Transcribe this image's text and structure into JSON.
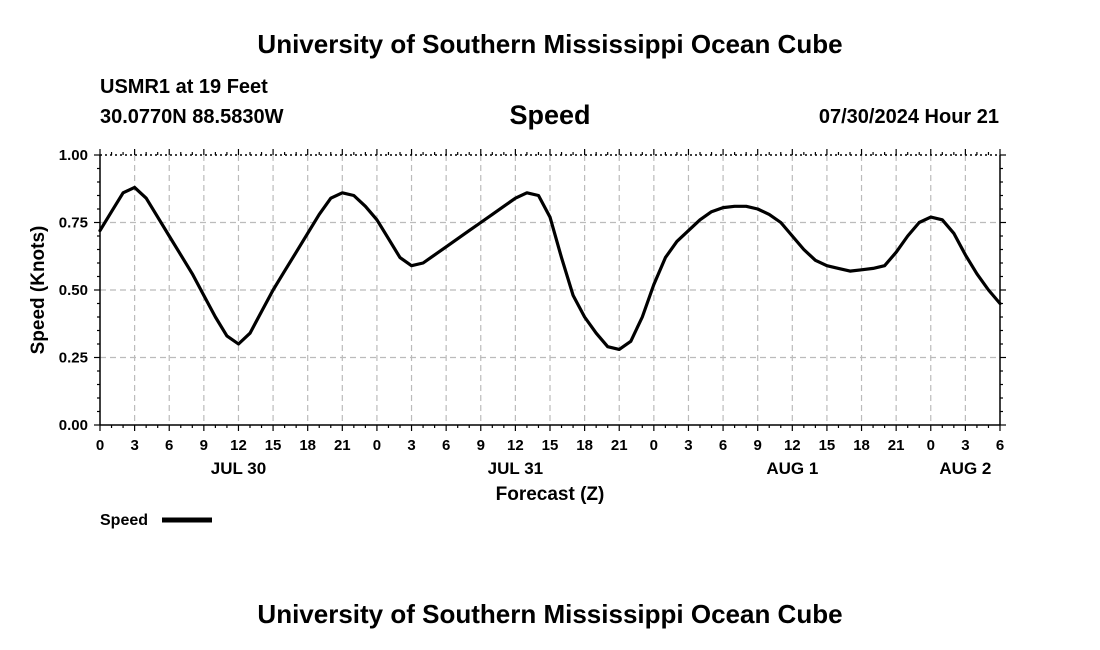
{
  "header": {
    "title": "University of Southern Mississippi Ocean Cube",
    "station": "USMR1 at 19 Feet",
    "coords": "30.0770N  88.5830W",
    "plot_title": "Speed",
    "datetime": "07/30/2024 Hour 21"
  },
  "footer": {
    "title": "University of Southern Mississippi Ocean Cube"
  },
  "chart_data": {
    "type": "line",
    "title": "Speed",
    "xlabel": "Forecast (Z)",
    "ylabel": "Speed (Knots)",
    "ylim": [
      0,
      1
    ],
    "y_ticks": [
      "0.00",
      "0.25",
      "0.50",
      "0.75",
      "1.00"
    ],
    "x_range_hours": [
      0,
      78
    ],
    "x_ticks": [
      "0",
      "3",
      "6",
      "9",
      "12",
      "15",
      "18",
      "21",
      "0",
      "3",
      "6",
      "9",
      "12",
      "15",
      "18",
      "21",
      "0",
      "3",
      "6",
      "9",
      "12",
      "15",
      "18",
      "21",
      "0",
      "3",
      "6"
    ],
    "x_date_labels": [
      {
        "label": "JUL 30",
        "hour": 12
      },
      {
        "label": "JUL 31",
        "hour": 36
      },
      {
        "label": "AUG 1",
        "hour": 60
      },
      {
        "label": "AUG 2",
        "hour": 75
      }
    ],
    "grid": true,
    "legend": {
      "label": "Speed",
      "placement": "bottom-left"
    },
    "series": [
      {
        "name": "Speed",
        "color": "#000000",
        "x": [
          0,
          1,
          2,
          3,
          4,
          5,
          6,
          7,
          8,
          9,
          10,
          11,
          12,
          13,
          14,
          15,
          16,
          17,
          18,
          19,
          20,
          21,
          22,
          23,
          24,
          25,
          26,
          27,
          28,
          29,
          30,
          31,
          32,
          33,
          34,
          35,
          36,
          37,
          38,
          39,
          40,
          41,
          42,
          43,
          44,
          45,
          46,
          47,
          48,
          49,
          50,
          51,
          52,
          53,
          54,
          55,
          56,
          57,
          58,
          59,
          60,
          61,
          62,
          63,
          64,
          65,
          66,
          67,
          68,
          69,
          70,
          71,
          72,
          73,
          74,
          75,
          76,
          77,
          78
        ],
        "values": [
          0.72,
          0.79,
          0.86,
          0.88,
          0.84,
          0.77,
          0.7,
          0.63,
          0.56,
          0.48,
          0.4,
          0.33,
          0.3,
          0.34,
          0.42,
          0.5,
          0.57,
          0.64,
          0.71,
          0.78,
          0.84,
          0.86,
          0.85,
          0.81,
          0.76,
          0.69,
          0.62,
          0.59,
          0.6,
          0.63,
          0.66,
          0.69,
          0.72,
          0.75,
          0.78,
          0.81,
          0.84,
          0.86,
          0.85,
          0.77,
          0.62,
          0.48,
          0.4,
          0.34,
          0.29,
          0.28,
          0.31,
          0.4,
          0.52,
          0.62,
          0.68,
          0.72,
          0.76,
          0.79,
          0.805,
          0.81,
          0.81,
          0.8,
          0.78,
          0.75,
          0.7,
          0.65,
          0.61,
          0.59,
          0.58,
          0.57,
          0.575,
          0.58,
          0.59,
          0.64,
          0.7,
          0.75,
          0.77,
          0.76,
          0.71,
          0.63,
          0.56,
          0.5,
          0.45
        ]
      }
    ]
  }
}
